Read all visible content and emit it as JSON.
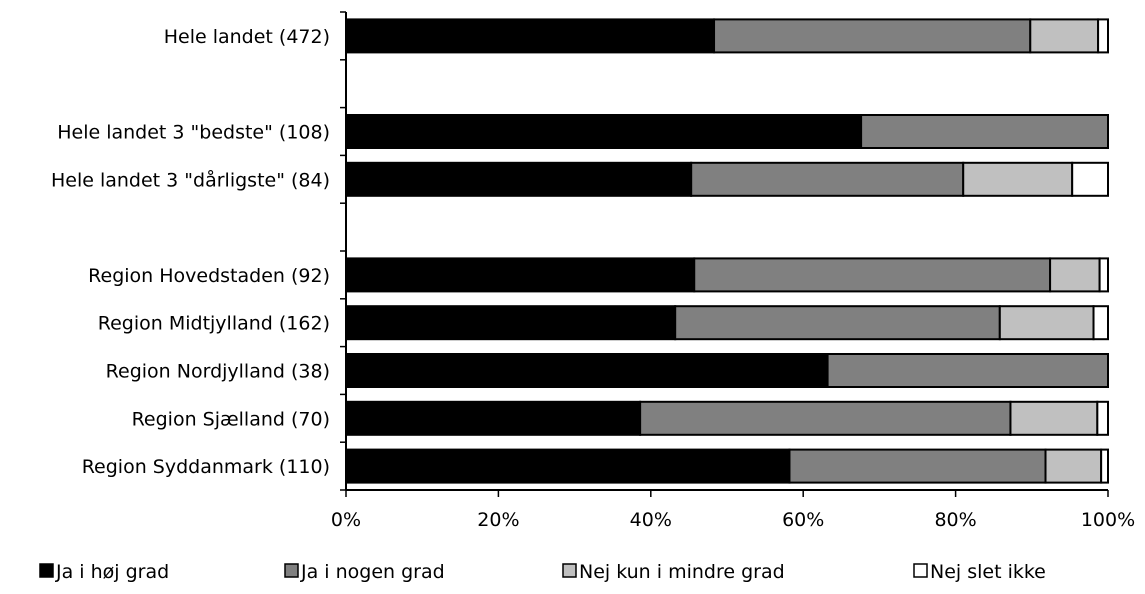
{
  "chart_data": {
    "type": "bar",
    "orientation": "horizontal",
    "stacked": true,
    "percent": true,
    "categories": [
      "Hele landet  (472)",
      "",
      "Hele landet 3 \"bedste\" (108)",
      "Hele landet 3 \"dårligste\" (84)",
      "",
      "Region Hovedstaden (92)",
      "Region Midtjylland (162)",
      "Region Nordjylland (38)",
      "Region Sjælland (70)",
      "Region Syddanmark (110)"
    ],
    "series": [
      {
        "name": "Ja i høj grad",
        "color": "#000000",
        "values": [
          48.3,
          null,
          67.6,
          45.3,
          null,
          45.7,
          43.2,
          63.2,
          38.6,
          58.2
        ]
      },
      {
        "name": "Ja i nogen grad",
        "color": "#808080",
        "values": [
          41.5,
          null,
          32.4,
          35.7,
          null,
          46.7,
          42.6,
          36.8,
          48.6,
          33.6
        ]
      },
      {
        "name": "Nej kun i mindre grad",
        "color": "#c0c0c0",
        "values": [
          8.9,
          null,
          0,
          14.3,
          null,
          6.5,
          12.3,
          0,
          11.4,
          7.3
        ]
      },
      {
        "name": "Nej slet ikke",
        "color": "#ffffff",
        "values": [
          1.3,
          null,
          0,
          4.7,
          null,
          1.1,
          1.9,
          0,
          1.4,
          0.9
        ]
      }
    ],
    "xlim": [
      0,
      100
    ],
    "xticks": [
      "0%",
      "20%",
      "40%",
      "60%",
      "80%",
      "100%"
    ],
    "legend_position": "bottom",
    "grid": false
  }
}
